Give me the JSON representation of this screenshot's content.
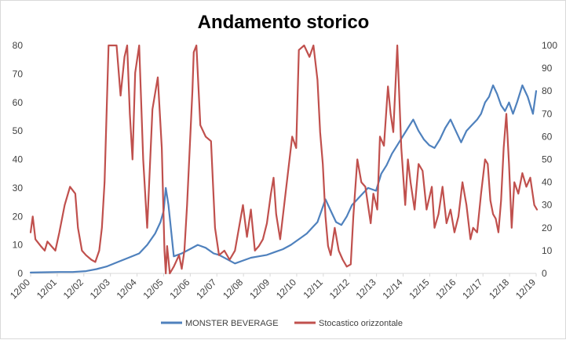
{
  "chart_data": {
    "type": "line",
    "title": "Andamento storico",
    "x_ticks": [
      "12/00",
      "12/01",
      "12/02",
      "12/03",
      "12/04",
      "12/05",
      "12/06",
      "12/07",
      "12/08",
      "12/09",
      "12/10",
      "12/11",
      "12/12",
      "12/13",
      "12/14",
      "12/15",
      "12/16",
      "12/17",
      "12/18",
      "12/19"
    ],
    "y_left": {
      "min": 0,
      "max": 80,
      "ticks": [
        "0",
        "10",
        "20",
        "30",
        "40",
        "50",
        "60",
        "70",
        "80"
      ]
    },
    "y_right": {
      "min": 0,
      "max": 100,
      "ticks": [
        "0",
        "10",
        "20",
        "30",
        "40",
        "50",
        "60",
        "70",
        "80",
        "90",
        "100"
      ]
    },
    "grid": false,
    "legend_position": "bottom",
    "series": [
      {
        "name": "MONSTER BEVERAGE",
        "axis": "left",
        "color": "#4f81bd",
        "x": [
          2000.92,
          2001.5,
          2002.0,
          2002.5,
          2003.0,
          2003.4,
          2003.8,
          2004.2,
          2004.6,
          2005.0,
          2005.3,
          2005.6,
          2005.8,
          2005.92,
          2006.0,
          2006.1,
          2006.3,
          2006.6,
          2006.9,
          2007.2,
          2007.5,
          2007.8,
          2008.0,
          2008.3,
          2008.6,
          2008.9,
          2009.2,
          2009.5,
          2009.8,
          2010.1,
          2010.4,
          2010.7,
          2011.0,
          2011.3,
          2011.5,
          2011.7,
          2011.85,
          2012.0,
          2012.2,
          2012.4,
          2012.6,
          2012.8,
          2013.0,
          2013.3,
          2013.6,
          2013.9,
          2014.1,
          2014.3,
          2014.5,
          2014.7,
          2014.9,
          2015.1,
          2015.3,
          2015.5,
          2015.7,
          2015.9,
          2016.1,
          2016.3,
          2016.5,
          2016.7,
          2016.9,
          2017.1,
          2017.3,
          2017.5,
          2017.7,
          2017.85,
          2018.0,
          2018.15,
          2018.3,
          2018.45,
          2018.6,
          2018.75,
          2018.9,
          2019.05,
          2019.2,
          2019.4,
          2019.6,
          2019.8,
          2019.92
        ],
        "values": [
          0.3,
          0.4,
          0.5,
          0.5,
          0.8,
          1.5,
          2.5,
          4.0,
          5.5,
          7.0,
          10.0,
          14.0,
          18.0,
          22.0,
          30.0,
          24.0,
          6.0,
          7.0,
          8.5,
          10.0,
          9.0,
          7.0,
          6.5,
          5.0,
          3.5,
          4.5,
          5.5,
          6.0,
          6.5,
          7.5,
          8.5,
          10.0,
          12.0,
          14.0,
          16.0,
          18.0,
          22.0,
          26.0,
          22.0,
          18.0,
          17.0,
          20.0,
          24.0,
          27.0,
          30.0,
          29.0,
          35.0,
          38.0,
          42.0,
          45.0,
          48.0,
          51.0,
          54.0,
          50.0,
          47.0,
          45.0,
          44.0,
          47.0,
          51.0,
          54.0,
          50.0,
          46.0,
          50.0,
          52.0,
          54.0,
          56.0,
          60.0,
          62.0,
          66.0,
          63.0,
          59.0,
          57.0,
          60.0,
          56.0,
          60.0,
          66.0,
          62.0,
          56.0,
          64.0
        ]
      },
      {
        "name": "Stocastico orizzontale",
        "axis": "right",
        "color": "#c0504d",
        "x": [
          2000.92,
          2001.0,
          2001.1,
          2001.3,
          2001.45,
          2001.55,
          2001.7,
          2001.85,
          2002.0,
          2002.2,
          2002.4,
          2002.6,
          2002.7,
          2002.85,
          2003.0,
          2003.2,
          2003.35,
          2003.5,
          2003.6,
          2003.7,
          2003.85,
          2004.0,
          2004.15,
          2004.3,
          2004.45,
          2004.55,
          2004.65,
          2004.75,
          2004.85,
          2005.0,
          2005.15,
          2005.3,
          2005.5,
          2005.7,
          2005.85,
          2005.95,
          2006.0,
          2006.05,
          2006.15,
          2006.3,
          2006.5,
          2006.6,
          2006.7,
          2006.8,
          2006.9,
          2007.0,
          2007.05,
          2007.15,
          2007.3,
          2007.5,
          2007.7,
          2007.85,
          2008.0,
          2008.2,
          2008.4,
          2008.6,
          2008.75,
          2008.9,
          2009.05,
          2009.2,
          2009.35,
          2009.5,
          2009.65,
          2009.8,
          2009.95,
          2010.05,
          2010.15,
          2010.3,
          2010.45,
          2010.6,
          2010.75,
          2010.9,
          2011.0,
          2011.2,
          2011.4,
          2011.55,
          2011.7,
          2011.8,
          2011.9,
          2012.0,
          2012.1,
          2012.2,
          2012.35,
          2012.5,
          2012.65,
          2012.8,
          2012.95,
          2013.05,
          2013.2,
          2013.35,
          2013.5,
          2013.6,
          2013.7,
          2013.8,
          2013.95,
          2014.05,
          2014.2,
          2014.35,
          2014.45,
          2014.55,
          2014.7,
          2014.85,
          2015.0,
          2015.1,
          2015.2,
          2015.35,
          2015.5,
          2015.65,
          2015.8,
          2016.0,
          2016.1,
          2016.25,
          2016.4,
          2016.55,
          2016.7,
          2016.85,
          2017.0,
          2017.15,
          2017.3,
          2017.45,
          2017.55,
          2017.7,
          2017.85,
          2018.0,
          2018.1,
          2018.2,
          2018.3,
          2018.4,
          2018.5,
          2018.6,
          2018.7,
          2018.8,
          2018.9,
          2019.0,
          2019.1,
          2019.25,
          2019.4,
          2019.55,
          2019.7,
          2019.85,
          2019.95
        ],
        "values": [
          18,
          25,
          15,
          12,
          10,
          14,
          12,
          10,
          18,
          30,
          38,
          35,
          20,
          10,
          8,
          6,
          5,
          10,
          20,
          40,
          100,
          100,
          100,
          78,
          95,
          100,
          70,
          50,
          88,
          100,
          50,
          20,
          72,
          86,
          55,
          10,
          0,
          12,
          0,
          3,
          8,
          2,
          10,
          30,
          55,
          80,
          97,
          100,
          65,
          60,
          58,
          20,
          8,
          10,
          6,
          10,
          20,
          30,
          16,
          28,
          10,
          12,
          15,
          22,
          35,
          42,
          26,
          15,
          30,
          45,
          60,
          55,
          98,
          100,
          95,
          100,
          85,
          62,
          48,
          25,
          12,
          8,
          20,
          10,
          6,
          3,
          4,
          25,
          50,
          40,
          38,
          30,
          22,
          35,
          28,
          60,
          56,
          82,
          70,
          62,
          100,
          55,
          30,
          50,
          40,
          28,
          48,
          45,
          28,
          38,
          20,
          26,
          38,
          22,
          28,
          18,
          25,
          40,
          30,
          15,
          20,
          18,
          35,
          50,
          48,
          32,
          26,
          24,
          18,
          32,
          55,
          70,
          48,
          20,
          40,
          35,
          44,
          38,
          42,
          30,
          28
        ]
      }
    ]
  }
}
